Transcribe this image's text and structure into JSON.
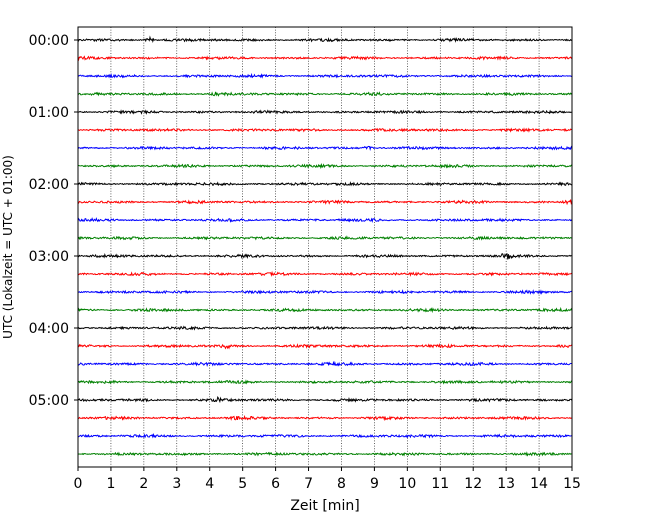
{
  "chart_data": {
    "type": "line",
    "subtype": "helicorder-seismogram",
    "title": "",
    "xlabel": "Zeit  [min]",
    "ylabel": "UTC (Lokalzeit = UTC + 01:00)",
    "xlim": [
      0,
      15
    ],
    "x_ticks": [
      "0",
      "1",
      "2",
      "3",
      "4",
      "5",
      "6",
      "7",
      "8",
      "9",
      "10",
      "11",
      "12",
      "13",
      "14",
      "15"
    ],
    "y_ticks": [
      "00:00",
      "01:00",
      "02:00",
      "03:00",
      "04:00",
      "05:00"
    ],
    "y_tick_rows": [
      0,
      4,
      8,
      12,
      16,
      20
    ],
    "trace_count": 24,
    "trace_interval_min": 15,
    "trace_colors": [
      "#000000",
      "#ff0000",
      "#0000ff",
      "#008000"
    ],
    "grid": "vertical dotted lines at each minute",
    "bursts": [
      {
        "row": 0,
        "x": 2.2,
        "amp": 2.2
      },
      {
        "row": 3,
        "x": 4.2,
        "amp": 1.6
      },
      {
        "row": 6,
        "x": 8.8,
        "amp": 1.5
      },
      {
        "row": 9,
        "x": 14.9,
        "amp": 2.4
      },
      {
        "row": 12,
        "x": 13.0,
        "amp": 3.0
      },
      {
        "row": 17,
        "x": 4.5,
        "amp": 1.6
      },
      {
        "row": 20,
        "x": 4.3,
        "amp": 2.2
      },
      {
        "row": 21,
        "x": 4.8,
        "amp": 1.4
      }
    ]
  }
}
